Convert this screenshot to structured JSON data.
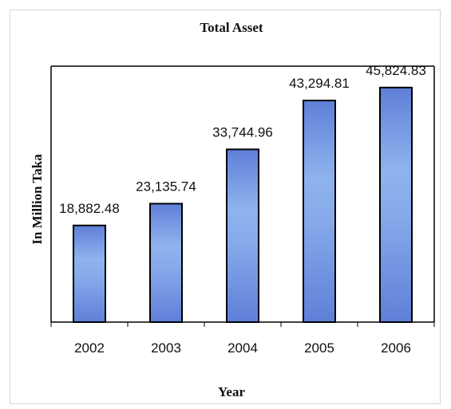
{
  "chart_data": {
    "type": "bar",
    "title": "Total Asset",
    "xlabel": "Year",
    "ylabel": "In Million Taka",
    "categories": [
      "2002",
      "2003",
      "2004",
      "2005",
      "2006"
    ],
    "values": [
      18882.48,
      23135.74,
      33744.96,
      43294.81,
      45824.83
    ],
    "value_labels": [
      "18,882.48",
      "23,135.74",
      "33,744.96",
      "43,294.81",
      "45,824.83"
    ],
    "ylim": [
      0,
      50000
    ],
    "grid": false,
    "legend": "none",
    "colors": {
      "bar_fill_light": "#8fb3ee",
      "bar_fill_dark": "#5f7fd8",
      "bar_stroke": "#000000",
      "axis": "#000000"
    }
  }
}
